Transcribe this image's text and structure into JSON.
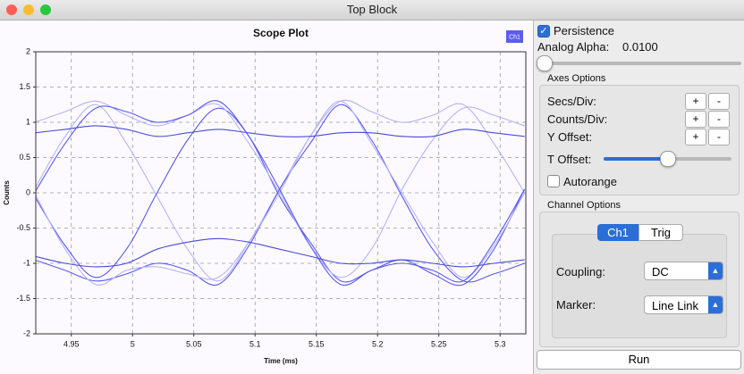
{
  "window": {
    "title": "Top Block"
  },
  "chart_data": {
    "type": "line",
    "title": "Scope Plot",
    "x_label": "Time (ms)",
    "y_label": "Counts",
    "legend": {
      "label": "Ch1",
      "color": "#5b5bf0"
    },
    "grid": true,
    "x": [
      4.92,
      4.945,
      4.97,
      4.995,
      5.02,
      5.045,
      5.07,
      5.095,
      5.12,
      5.145,
      5.17,
      5.195,
      5.22,
      5.245,
      5.27,
      5.295,
      5.32
    ],
    "series": [
      {
        "color": "#b4b4f7",
        "values": [
          0.05,
          0.8,
          1.25,
          0.7,
          -0.05,
          -0.8,
          -1.25,
          -0.7,
          0.05,
          0.8,
          1.3,
          1.15,
          1.0,
          1.1,
          1.25,
          0.7,
          0.0
        ]
      },
      {
        "color": "#5a5aee",
        "values": [
          -0.05,
          -0.75,
          -1.2,
          -0.8,
          0.0,
          0.75,
          1.2,
          0.8,
          -0.05,
          -0.7,
          -1.25,
          -1.1,
          -0.95,
          -1.15,
          -1.3,
          -0.8,
          0.05
        ]
      },
      {
        "color": "#b4b4f7",
        "values": [
          1.0,
          1.15,
          1.3,
          1.1,
          0.95,
          1.1,
          1.25,
          0.7,
          0.0,
          -0.75,
          -1.2,
          -0.8,
          0.05,
          0.75,
          1.2,
          1.1,
          0.95
        ]
      },
      {
        "color": "#5a5aee",
        "values": [
          -0.95,
          -1.1,
          -1.25,
          -1.15,
          -1.0,
          -1.1,
          -1.3,
          -0.75,
          0.05,
          0.7,
          1.25,
          0.75,
          -0.05,
          -0.8,
          -1.25,
          -1.15,
          -1.0
        ]
      },
      {
        "color": "#b4b4f7",
        "values": [
          0.0,
          -0.8,
          -1.3,
          -1.1,
          -1.05,
          -1.15,
          -1.2,
          -0.7,
          0.0,
          0.8,
          1.3,
          0.7,
          0.0,
          -0.7,
          -1.2,
          -0.75,
          0.0
        ]
      },
      {
        "color": "#5a5aee",
        "values": [
          0.0,
          0.7,
          1.2,
          1.15,
          1.0,
          1.1,
          1.3,
          0.8,
          0.05,
          -0.75,
          -1.3,
          -1.1,
          -1.0,
          -1.1,
          -1.25,
          -0.7,
          0.05
        ]
      },
      {
        "color": "#4a4ad8",
        "values": [
          0.85,
          0.9,
          0.95,
          0.9,
          0.8,
          0.85,
          0.9,
          0.85,
          0.8,
          0.8,
          0.85,
          0.85,
          0.8,
          0.8,
          0.9,
          0.85,
          0.8
        ]
      },
      {
        "color": "#4a4ad8",
        "values": [
          -0.9,
          -1.0,
          -1.05,
          -1.0,
          -0.8,
          -0.7,
          -0.65,
          -0.7,
          -0.8,
          -0.9,
          -1.0,
          -1.0,
          -0.95,
          -1.0,
          -1.05,
          -1.0,
          -0.95
        ]
      }
    ],
    "xlim": [
      4.921,
      5.321
    ],
    "xticks": [
      4.95,
      5,
      5.05,
      5.1,
      5.15,
      5.2,
      5.25,
      5.3
    ],
    "ylim": [
      -2,
      2
    ],
    "yticks": [
      -2,
      -1.5,
      -1,
      -0.5,
      0,
      0.5,
      1,
      1.5,
      2
    ]
  },
  "controls": {
    "persistence": {
      "label": "Persistence",
      "checked": true
    },
    "analog_alpha": {
      "label": "Analog Alpha:",
      "value": {
        "value": 0.01,
        "label": "0.0100"
      }
    },
    "axes_options": {
      "title": "Axes Options",
      "rows": [
        "Secs/Div:",
        "Counts/Div:",
        "Y Offset:"
      ],
      "plus": "+",
      "minus": "-",
      "t_offset": "T Offset:",
      "autorange": {
        "label": "Autorange",
        "checked": false
      }
    },
    "channel_options": {
      "title": "Channel Options",
      "tabs": [
        "Ch1",
        "Trig"
      ],
      "coupling": {
        "label": "Coupling:",
        "value": "DC"
      },
      "marker": {
        "label": "Marker:",
        "value": "Line Link"
      }
    },
    "run": "Run"
  }
}
